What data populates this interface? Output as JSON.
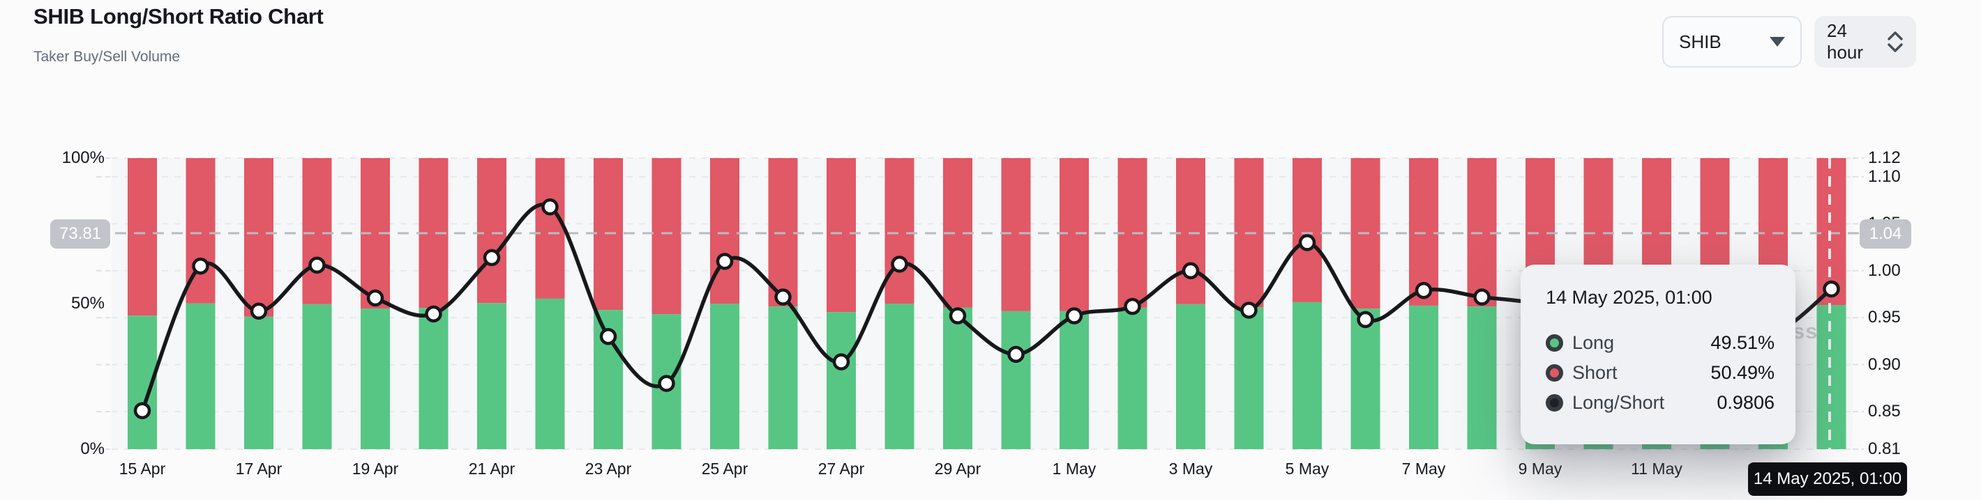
{
  "header": {
    "title": "SHIB Long/Short Ratio Chart",
    "subtitle": "Taker Buy/Sell Volume"
  },
  "controls": {
    "symbol_select": {
      "value": "SHIB"
    },
    "interval_select": {
      "value": "24 hour"
    }
  },
  "chart_data": {
    "type": "bar",
    "subtype": "stacked-percent-bars-with-spline-overlay",
    "categories": [
      "15 Apr",
      "16 Apr",
      "17 Apr",
      "18 Apr",
      "19 Apr",
      "20 Apr",
      "21 Apr",
      "22 Apr",
      "23 Apr",
      "24 Apr",
      "25 Apr",
      "26 Apr",
      "27 Apr",
      "28 Apr",
      "29 Apr",
      "30 Apr",
      "1 May",
      "2 May",
      "3 May",
      "4 May",
      "5 May",
      "6 May",
      "7 May",
      "8 May",
      "9 May",
      "10 May",
      "11 May",
      "12 May",
      "13 May",
      "14 May"
    ],
    "series": [
      {
        "name": "Long",
        "type": "bar-segment-bottom",
        "unit": "%",
        "color": "#57c685",
        "values": [
          45.9,
          50.1,
          45.5,
          49.8,
          48.3,
          48.5,
          50.2,
          51.7,
          47.8,
          46.4,
          50.0,
          49.0,
          47.1,
          50.0,
          48.6,
          47.4,
          47.4,
          48.6,
          49.8,
          48.8,
          50.5,
          48.3,
          49.3,
          49.0,
          49.1,
          48.8,
          48.5,
          48.3,
          48.2,
          49.51
        ]
      },
      {
        "name": "Short",
        "type": "bar-segment-top",
        "unit": "%",
        "color": "#e15866",
        "values": [
          54.1,
          49.9,
          54.5,
          50.2,
          51.7,
          51.5,
          49.8,
          48.3,
          52.2,
          53.6,
          50.0,
          51.0,
          52.9,
          50.0,
          51.4,
          52.6,
          52.6,
          51.4,
          50.2,
          51.2,
          49.5,
          51.7,
          50.7,
          51.0,
          50.9,
          51.2,
          51.5,
          51.7,
          51.8,
          50.49
        ]
      },
      {
        "name": "Long/Short",
        "type": "spline",
        "color": "#17181b",
        "values": [
          0.851,
          1.005,
          0.957,
          1.006,
          0.971,
          0.954,
          1.014,
          1.068,
          0.93,
          0.88,
          1.01,
          0.972,
          0.903,
          1.007,
          0.952,
          0.911,
          0.952,
          0.962,
          1.0,
          0.958,
          1.03,
          0.948,
          0.979,
          0.972,
          0.965,
          0.952,
          0.942,
          0.934,
          0.932,
          0.9806
        ]
      }
    ],
    "x_tick_labels": [
      {
        "index": 0,
        "label": "15 Apr"
      },
      {
        "index": 2,
        "label": "17 Apr"
      },
      {
        "index": 4,
        "label": "19 Apr"
      },
      {
        "index": 6,
        "label": "21 Apr"
      },
      {
        "index": 8,
        "label": "23 Apr"
      },
      {
        "index": 10,
        "label": "25 Apr"
      },
      {
        "index": 12,
        "label": "27 Apr"
      },
      {
        "index": 14,
        "label": "29 Apr"
      },
      {
        "index": 16,
        "label": "1 May"
      },
      {
        "index": 18,
        "label": "3 May"
      },
      {
        "index": 20,
        "label": "5 May"
      },
      {
        "index": 22,
        "label": "7 May"
      },
      {
        "index": 24,
        "label": "9 May"
      },
      {
        "index": 26,
        "label": "11 May"
      },
      {
        "index": 28,
        "label": "13 May"
      }
    ],
    "left_axis": {
      "ticks": [
        {
          "label": "100%",
          "value": 100
        },
        {
          "label": "50%",
          "value": 50
        },
        {
          "label": "0%",
          "value": 0
        }
      ],
      "range": [
        0,
        100
      ]
    },
    "right_axis": {
      "ticks": [
        "1.12",
        "1.10",
        "1.05",
        "1.00",
        "0.95",
        "0.90",
        "0.85",
        "0.81"
      ],
      "range": [
        0.81,
        1.12
      ]
    },
    "grid": "dashed horizontal at right-axis ticks",
    "legend_position": "tooltip-only",
    "colors": {
      "long": "#57c685",
      "short": "#e15866",
      "line": "#17181b",
      "grid": "#e7e9ec",
      "crosshair": "#b8bcc1",
      "crosshair_on_bar": "#f2f3f4",
      "plot_bg": "#f6f7f8",
      "badge_bg": "#c2c4c9"
    }
  },
  "crosshair": {
    "left_label": "73.81",
    "right_label": "1.04",
    "ratio_value": 1.04,
    "hovered_index": 29
  },
  "tooltip": {
    "date": "14 May 2025, 01:00",
    "rows": [
      {
        "label": "Long",
        "value": "49.51%",
        "color": "#57c685"
      },
      {
        "label": "Short",
        "value": "50.49%",
        "color": "#e15866"
      },
      {
        "label": "Long/Short",
        "value": "0.9806",
        "color": "#1e2126"
      }
    ]
  },
  "x_axis_tooltip": {
    "label": "14 May 2025, 01:00"
  },
  "watermark": "ss"
}
